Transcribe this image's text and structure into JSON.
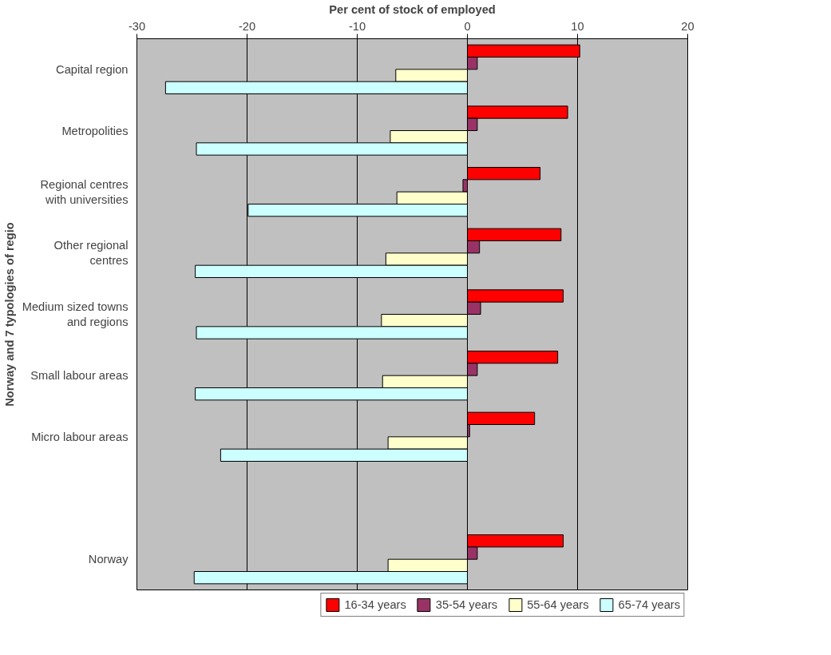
{
  "chart_data": {
    "type": "bar",
    "orientation": "horizontal",
    "xlabel": "Per cent of stock of employed",
    "ylabel": "Norway and 7 typologies of regio",
    "categories": [
      "Capital region",
      "Metropolities",
      "Regional centres with universities",
      "Other regional centres",
      "Medium sized towns and regions",
      "Small labour areas",
      "Micro labour areas",
      null,
      "Norway"
    ],
    "series": [
      {
        "name": "16-34 years",
        "color": "#ff0000",
        "values": [
          10.2,
          9.1,
          6.6,
          8.5,
          8.7,
          8.2,
          6.1,
          null,
          8.7
        ]
      },
      {
        "name": "35-54 years",
        "color": "#993366",
        "values": [
          0.9,
          0.9,
          -0.4,
          1.1,
          1.2,
          0.9,
          0.2,
          null,
          0.9
        ]
      },
      {
        "name": "55-64 years",
        "color": "#ffffcc",
        "values": [
          -6.5,
          -7.0,
          -6.4,
          -7.4,
          -7.8,
          -7.7,
          -7.2,
          null,
          -7.2
        ]
      },
      {
        "name": "65-74 years",
        "color": "#ccffff",
        "values": [
          -27.4,
          -24.6,
          -19.9,
          -24.7,
          -24.6,
          -24.7,
          -22.4,
          null,
          -24.8
        ]
      }
    ],
    "xlim": [
      -30,
      20
    ],
    "xticks": [
      -30,
      -20,
      -10,
      0,
      10,
      20
    ],
    "grid": "x",
    "legend": "bottom"
  }
}
